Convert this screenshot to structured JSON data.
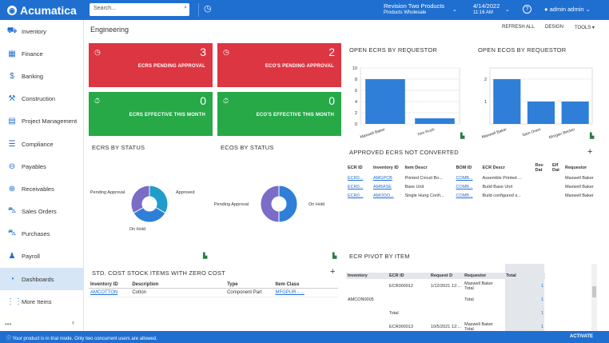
{
  "colors": {
    "brand": "#1f6fd1",
    "alert": "#dd3643",
    "ok": "#27a948",
    "bar": "#2f7fd9"
  },
  "app": {
    "name": "Acumatica",
    "search_placeholder": "Search...",
    "tenant": "Revision Two Products",
    "branch": "Products Wholesale",
    "date": "4/14/2022",
    "time": "11:16 AM",
    "user": "admin admin"
  },
  "sidebar": {
    "items": [
      {
        "label": "Inventory",
        "icon": "truck-icon"
      },
      {
        "label": "Finance",
        "icon": "calculator-icon"
      },
      {
        "label": "Banking",
        "icon": "dollar-icon"
      },
      {
        "label": "Construction",
        "icon": "crane-icon"
      },
      {
        "label": "Project Management",
        "icon": "clipboard-icon"
      },
      {
        "label": "Compliance",
        "icon": "list-icon"
      },
      {
        "label": "Payables",
        "icon": "minus-circle-icon"
      },
      {
        "label": "Receivables",
        "icon": "plus-circle-icon"
      },
      {
        "label": "Sales Orders",
        "icon": "cart-icon"
      },
      {
        "label": "Purchases",
        "icon": "cart-icon"
      },
      {
        "label": "Payroll",
        "icon": "person-icon"
      },
      {
        "label": "Dashboards",
        "icon": "gauge-icon"
      },
      {
        "label": "More Items",
        "icon": "grid-icon"
      }
    ]
  },
  "page": {
    "title": "Engineering",
    "toolbar": {
      "refresh": "REFRESH ALL",
      "design": "DESIGN",
      "tools": "TOOLS"
    }
  },
  "tiles": [
    {
      "value": "3",
      "label": "ECRS PENDING APPROVAL"
    },
    {
      "value": "2",
      "label": "ECO'S PENDING APPROVAL"
    },
    {
      "value": "0",
      "label": "ECRS EFFECTIVE THIS MONTH"
    },
    {
      "value": "0",
      "label": "ECO'S EFFECTIVE THIS MONTH"
    }
  ],
  "widgets": {
    "ecrs_status": "ECRS BY STATUS",
    "ecos_status": "ECOS BY STATUS",
    "open_ecrs": "OPEN ECRS BY REQUESTOR",
    "open_ecos": "OPEN ECOS BY REQUESTOR",
    "approved": "APPROVED ECRS NOT CONVERTED",
    "stdcost": "STD. COST STOCK ITEMS WITH ZERO COST",
    "pivot": "ECR PIVOT BY ITEM"
  },
  "chart_data": [
    {
      "type": "bar",
      "title": "OPEN ECRS BY REQUESTOR",
      "categories": [
        "Maxwell Baker",
        "Tom Rush"
      ],
      "values": [
        8,
        1
      ],
      "ylim": [
        0,
        10
      ],
      "yticks": [
        "0",
        "2",
        "4",
        "6",
        "8",
        "10"
      ]
    },
    {
      "type": "bar",
      "title": "OPEN ECOS BY REQUESTOR",
      "categories": [
        "Maxwell Baker",
        "Sam Orem",
        "Morgan Becker"
      ],
      "values": [
        2,
        1,
        1
      ],
      "ylim": [
        0,
        2.5
      ],
      "yticks": [
        "1",
        "2"
      ]
    },
    {
      "type": "pie",
      "title": "ECRS BY STATUS",
      "labels": [
        "Pending Approval",
        "Approved",
        "On Hold"
      ],
      "values": [
        1,
        1,
        1
      ],
      "label_texts": [
        "Pending Approval",
        "Approved",
        "On Hold"
      ]
    },
    {
      "type": "pie",
      "title": "ECOS BY STATUS",
      "labels": [
        "Pending Approval",
        "On Hold"
      ],
      "values": [
        1,
        1
      ],
      "label_texts": [
        "Pending Approval",
        "On Hold"
      ]
    }
  ],
  "approved_table": {
    "headers": [
      "ECR ID",
      "Inventory ID",
      "Item Descr",
      "BOM ID",
      "ECR Descr",
      "Rev Dat",
      "Eff Dat",
      "Requestor"
    ],
    "rows": [
      [
        "ECR0...",
        "AMGPCB",
        "Printed Circuit Bo...",
        "COMB...",
        "Assemble Printed ...",
        "",
        "",
        "Maxwell Baker"
      ],
      [
        "ECR0...",
        "AMBASE",
        "Base Unit",
        "COMB...",
        "Build Base Unit",
        "",
        "",
        "Maxwell Baker"
      ],
      [
        "ECR0...",
        "AMOOO...",
        "Single Hung Confi...",
        "COMB...",
        "Build configured s...",
        "",
        "",
        "Maxwell Baker"
      ]
    ]
  },
  "stdcost_table": {
    "headers": [
      "Inventory ID",
      "Description",
      "Type",
      "Item Class"
    ],
    "rows": [
      [
        "AMCOTTON",
        "Cotton",
        "Component Part",
        "MFGPUR - ..."
      ]
    ]
  },
  "pivot": {
    "headers": [
      "Inventory",
      "ECR ID",
      "Request D",
      "Requestor",
      "Total"
    ],
    "rows": [
      {
        "inv": "",
        "ecr": "ECR000012",
        "date": "1/12/2021 12:...",
        "req": "Maxwell Baker",
        "sub": "Total",
        "total": "1"
      },
      {
        "inv": "AMCON0005",
        "ecr": "",
        "date": "",
        "req": "",
        "sub": "Total",
        "total": "1"
      },
      {
        "inv": "",
        "ecr": "Total",
        "date": "",
        "req": "",
        "sub": "",
        "total": "1"
      },
      {
        "inv": "",
        "ecr": "ECR000013",
        "date": "10/5/2021 12:...",
        "req": "Maxwell Baker",
        "sub": "Total",
        "total": "1"
      }
    ]
  },
  "footer": {
    "message": "Your product is in trial mode. Only two concurrent users are allowed.",
    "action": "ACTIVATE"
  }
}
